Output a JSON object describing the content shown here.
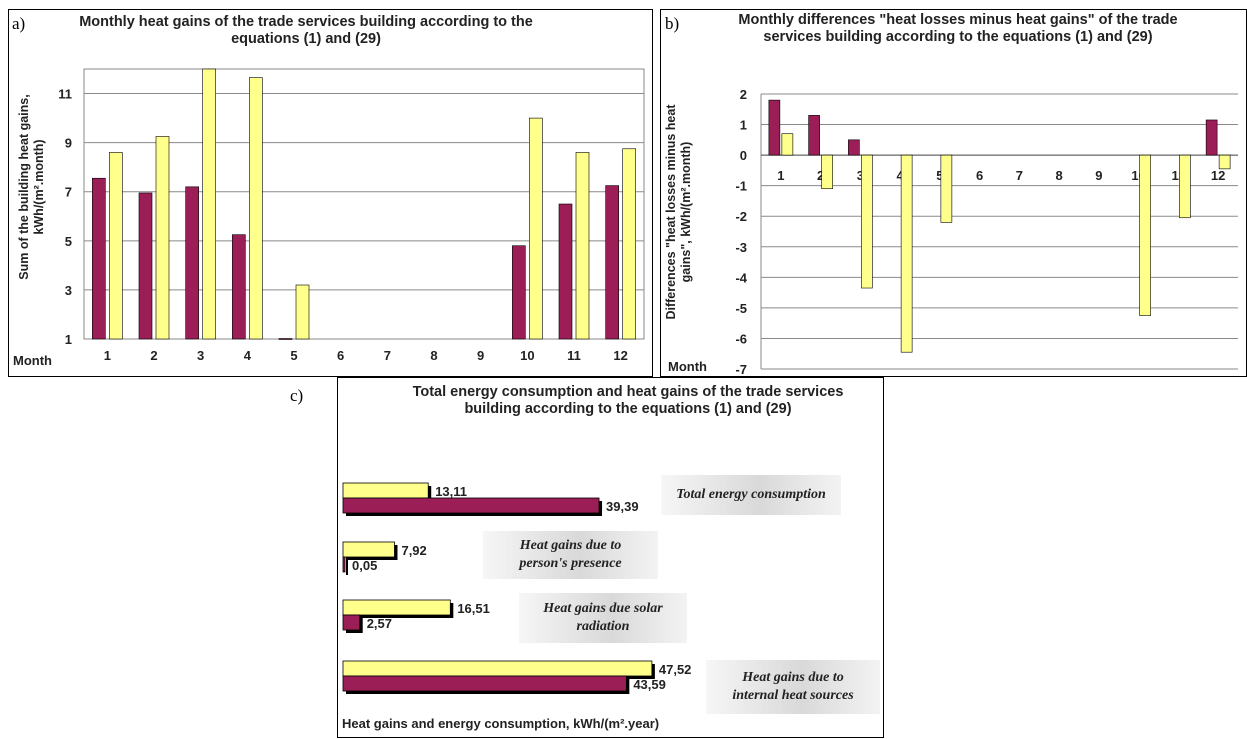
{
  "colors": {
    "maroon": "#9b1e56",
    "yellow": "#ffff8c",
    "grid": "#8a8a8a"
  },
  "panels": {
    "a": {
      "letter": "a)",
      "title": "Monthly heat gains of the trade services building according to the equations (1) and (29)",
      "ylabel_line1": "Sum of the building heat gains,",
      "ylabel_line2": "kWh/(m².month)",
      "month_label": "Month"
    },
    "b": {
      "letter": "b)",
      "title": "Monthly differences \"heat losses minus heat gains\" of the trade services building according to the equations (1) and (29)",
      "ylabel_line1": "Differences \"heat losses minus heat",
      "ylabel_line2": "gains\", kWh/(m².month)",
      "month_label": "Month"
    },
    "c": {
      "letter": "c)",
      "title": "Total energy consumption and heat gains of the trade services building  according to the equations (1) and (29)",
      "xlabel": "Heat  gains and energy consumption, kWh/(m².year)"
    }
  },
  "chart_data": [
    {
      "type": "bar",
      "categories": [
        "1",
        "2",
        "3",
        "4",
        "5",
        "6",
        "7",
        "8",
        "9",
        "10",
        "11",
        "12"
      ],
      "series": [
        {
          "color": "#9b1e56",
          "values": [
            7.55,
            6.95,
            7.2,
            5.25,
            1.02,
            null,
            null,
            null,
            null,
            4.8,
            6.5,
            7.25
          ]
        },
        {
          "color": "#ffff8c",
          "values": [
            8.6,
            9.25,
            12.0,
            11.65,
            3.2,
            null,
            null,
            null,
            null,
            10.0,
            8.6,
            8.75
          ]
        }
      ],
      "title": "Monthly heat gains of the trade services building according to the equations (1) and (29)",
      "xlabel": "Month",
      "ylabel": "Sum of the building heat gains, kWh/(m².month)",
      "ylim": [
        1,
        12
      ],
      "yticks": [
        1,
        3,
        5,
        7,
        9,
        11
      ],
      "grid": true
    },
    {
      "type": "bar",
      "categories": [
        "1",
        "2",
        "3",
        "4",
        "5",
        "6",
        "7",
        "8",
        "9",
        "10",
        "11",
        "12"
      ],
      "series": [
        {
          "color": "#9b1e56",
          "values": [
            1.8,
            1.3,
            0.5,
            0,
            0,
            null,
            null,
            null,
            null,
            0,
            0,
            1.15
          ]
        },
        {
          "color": "#ffff8c",
          "values": [
            0.7,
            -1.1,
            -4.35,
            -6.45,
            -2.2,
            null,
            null,
            null,
            null,
            -5.25,
            -2.05,
            -0.45
          ]
        }
      ],
      "title": "Monthly differences \"heat losses minus heat gains\" of the trade services building according to the equations (1) and (29)",
      "xlabel": "Month",
      "ylabel": "Differences \"heat losses minus heat gains\", kWh/(m².month)",
      "ylim": [
        -7,
        2
      ],
      "yticks": [
        2,
        1,
        0,
        -1,
        -2,
        -3,
        -4,
        -5,
        -6,
        -7
      ],
      "grid": true
    },
    {
      "type": "bar",
      "orientation": "horizontal",
      "categories": [
        "Total energy consumption",
        "Heat gains due to person's presence",
        "Heat gains due solar radiation",
        "Heat gains due to internal heat sources"
      ],
      "category_lines": [
        [
          "Total energy consumption"
        ],
        [
          "Heat gains due to",
          "person's presence"
        ],
        [
          "Heat gains due solar",
          "radiation"
        ],
        [
          "Heat gains due to",
          "internal heat sources"
        ]
      ],
      "series": [
        {
          "color": "#ffff8c",
          "values": [
            13.11,
            7.92,
            16.51,
            47.52
          ],
          "labels": [
            "13,11",
            "7,92",
            "16,51",
            "47,52"
          ]
        },
        {
          "color": "#9b1e56",
          "values": [
            39.39,
            0.05,
            2.57,
            43.59
          ],
          "labels": [
            "39,39",
            "0,05",
            "2,57",
            "43,59"
          ]
        }
      ],
      "title": "Total energy consumption and heat gains of the trade services building  according to the equations (1) and (29)",
      "xlabel": "Heat  gains and energy consumption, kWh/(m².year)"
    }
  ]
}
